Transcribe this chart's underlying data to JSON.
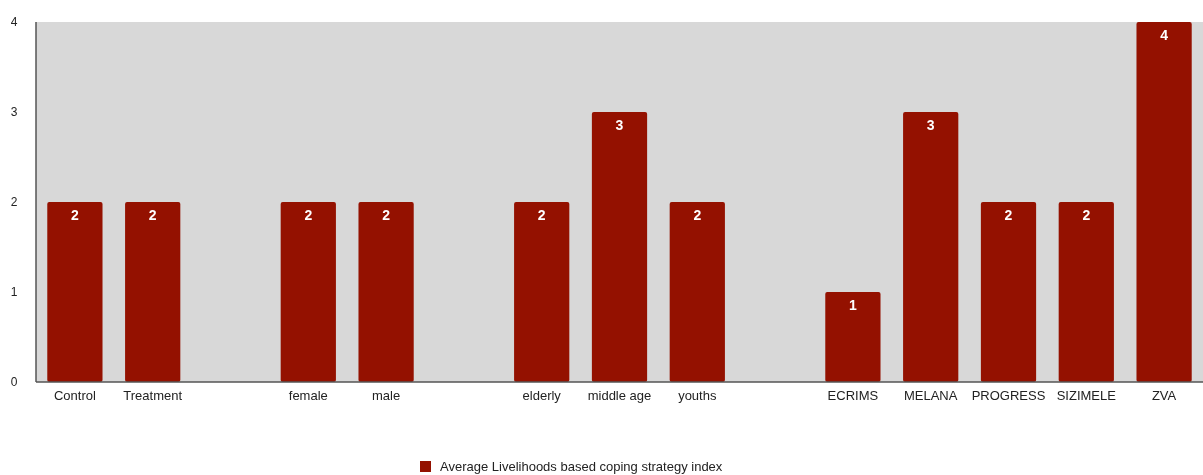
{
  "chart_data": {
    "type": "bar",
    "categories": [
      "Control",
      "Treatment",
      null,
      "female",
      "male",
      null,
      "elderly",
      "middle age",
      "youths",
      null,
      "ECRIMS",
      "MELANA",
      "PROGRESS",
      "SIZIMELE",
      "ZVA"
    ],
    "series": [
      {
        "name": "Average Livelihoods based coping strategy index",
        "color": "#941100",
        "values": [
          2,
          2,
          null,
          2,
          2,
          null,
          2,
          3,
          2,
          null,
          1,
          3,
          2,
          2,
          4
        ]
      }
    ],
    "ylim": [
      0,
      4
    ],
    "yticks": [
      0,
      1,
      2,
      3,
      4
    ],
    "data_labels": true,
    "legend": "bottom"
  }
}
